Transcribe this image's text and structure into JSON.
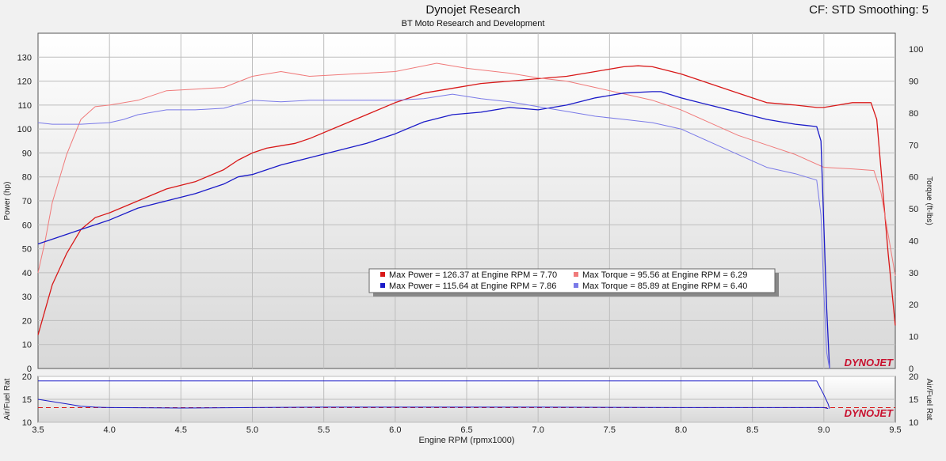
{
  "header": {
    "title": "Dynojet Research",
    "subtitle": "BT Moto Research and Development",
    "cf_info": "CF: STD Smoothing: 5"
  },
  "colors": {
    "run1_power": "#d81818",
    "run1_torque": "#f07a7a",
    "run2_power": "#1a1ac8",
    "run2_torque": "#7a7ae8",
    "afr_ref_line": "#d81818",
    "logo": "#c8102e"
  },
  "logo_text": "DYNOJET",
  "legend": {
    "placement": "center",
    "entries": [
      {
        "label": "Max Power = 126.37 at Engine RPM = 7.70",
        "color": "#d81818"
      },
      {
        "label": "Max Torque = 95.56 at Engine RPM = 6.29",
        "color": "#f07a7a"
      },
      {
        "label": "Max Power = 115.64 at Engine RPM = 7.86",
        "color": "#1a1ac8"
      },
      {
        "label": "Max Torque = 85.89 at Engine RPM = 6.40",
        "color": "#7a7ae8"
      }
    ]
  },
  "chart_data": [
    {
      "type": "line",
      "xlabel": "Engine RPM (rpmx1000)",
      "ylabel": "Power (hp)",
      "y2label": "Torque (ft-lbs)",
      "xlim": [
        3.5,
        9.5
      ],
      "ylim": [
        0,
        140
      ],
      "y2lim": [
        0,
        105
      ],
      "x_ticks": [
        "3.5",
        "4.0",
        "4.5",
        "5.0",
        "5.5",
        "6.0",
        "6.5",
        "7.0",
        "7.5",
        "8.0",
        "8.5",
        "9.0",
        "9.5"
      ],
      "y_ticks": [
        "0",
        "10",
        "20",
        "30",
        "40",
        "50",
        "60",
        "70",
        "80",
        "90",
        "100",
        "110",
        "120",
        "130"
      ],
      "y2_ticks": [
        "0",
        "10",
        "20",
        "30",
        "40",
        "50",
        "60",
        "70",
        "80",
        "90",
        "100"
      ],
      "grid": true,
      "series": [
        {
          "axis": "left",
          "color": "#d81818",
          "x": [
            3.5,
            3.6,
            3.7,
            3.8,
            3.9,
            4.0,
            4.2,
            4.4,
            4.6,
            4.8,
            4.9,
            5.0,
            5.1,
            5.2,
            5.3,
            5.4,
            5.6,
            5.8,
            6.0,
            6.2,
            6.4,
            6.6,
            6.8,
            7.0,
            7.2,
            7.4,
            7.6,
            7.7,
            7.8,
            8.0,
            8.2,
            8.4,
            8.6,
            8.8,
            8.95,
            9.0,
            9.1,
            9.2,
            9.3,
            9.33,
            9.37,
            9.45,
            9.5
          ],
          "y": [
            14,
            35,
            48,
            58,
            63,
            65,
            70,
            75,
            78,
            83,
            87,
            90,
            92,
            93,
            94,
            96,
            101,
            106,
            111,
            115,
            117,
            119,
            120,
            121,
            122,
            124,
            126,
            126.4,
            126,
            123,
            119,
            115,
            111,
            110,
            109,
            109,
            110,
            111,
            111,
            111,
            104,
            48,
            18
          ]
        },
        {
          "axis": "right",
          "color": "#f07a7a",
          "x": [
            3.5,
            3.55,
            3.6,
            3.7,
            3.8,
            3.9,
            4.0,
            4.2,
            4.4,
            4.6,
            4.8,
            5.0,
            5.2,
            5.4,
            5.6,
            5.8,
            6.0,
            6.29,
            6.5,
            6.8,
            7.0,
            7.2,
            7.4,
            7.6,
            7.8,
            8.0,
            8.2,
            8.4,
            8.6,
            8.8,
            9.0,
            9.2,
            9.35,
            9.4,
            9.5
          ],
          "y": [
            30,
            40,
            52,
            67,
            78,
            82,
            82.5,
            84,
            87,
            87.5,
            88,
            91.5,
            93,
            91.5,
            92,
            92.5,
            93,
            95.6,
            94,
            92.5,
            91,
            90,
            88,
            86,
            84,
            81,
            77,
            73,
            70,
            67,
            63,
            62.5,
            62,
            55,
            29
          ]
        },
        {
          "axis": "left",
          "color": "#1a1ac8",
          "x": [
            3.5,
            3.6,
            3.7,
            3.8,
            3.9,
            4.0,
            4.2,
            4.4,
            4.6,
            4.8,
            4.9,
            5.0,
            5.2,
            5.4,
            5.6,
            5.8,
            6.0,
            6.2,
            6.4,
            6.6,
            6.8,
            7.0,
            7.2,
            7.4,
            7.6,
            7.8,
            7.86,
            8.0,
            8.2,
            8.4,
            8.6,
            8.8,
            8.95,
            8.98,
            9.0,
            9.02,
            9.04
          ],
          "y": [
            52,
            54,
            56,
            58,
            60,
            62,
            67,
            70,
            73,
            77,
            80,
            81,
            85,
            88,
            91,
            94,
            98,
            103,
            106,
            107,
            109,
            108,
            110,
            113,
            115,
            115.6,
            115.6,
            113,
            110,
            107,
            104,
            102,
            101,
            95,
            60,
            25,
            0
          ]
        },
        {
          "axis": "right",
          "color": "#7a7ae8",
          "x": [
            3.5,
            3.6,
            3.8,
            4.0,
            4.1,
            4.2,
            4.4,
            4.6,
            4.8,
            5.0,
            5.2,
            5.4,
            5.6,
            5.8,
            6.0,
            6.2,
            6.4,
            6.6,
            6.8,
            7.0,
            7.2,
            7.4,
            7.6,
            7.8,
            8.0,
            8.2,
            8.4,
            8.6,
            8.8,
            8.95,
            8.98,
            9.0,
            9.02,
            9.04
          ],
          "y": [
            77,
            76.5,
            76.5,
            77,
            78,
            79.5,
            81,
            81,
            81.5,
            84,
            83.5,
            84,
            84,
            84,
            84,
            84.5,
            85.9,
            84.5,
            83.5,
            82,
            80.5,
            79,
            78,
            77,
            75,
            71,
            67,
            63,
            61,
            59,
            48,
            24,
            5,
            0
          ]
        }
      ]
    },
    {
      "type": "line",
      "xlabel": "Engine RPM (rpmx1000)",
      "ylabel": "Air/Fuel Rat",
      "y2label": "Air/Fuel Rat",
      "xlim": [
        3.5,
        9.5
      ],
      "ylim": [
        10,
        20
      ],
      "y_ticks": [
        "10",
        "15",
        "20"
      ],
      "y2_ticks": [
        "10",
        "15",
        "20"
      ],
      "reference_line": 13.2,
      "series": [
        {
          "color": "#1a1ac8",
          "x": [
            3.5,
            3.7,
            3.9,
            4.5,
            5.5,
            6.5,
            7.5,
            8.5,
            8.95,
            9.0,
            9.03,
            9.04
          ],
          "y": [
            19,
            19,
            19,
            19,
            19,
            19,
            19,
            19,
            19,
            16,
            14,
            13
          ]
        },
        {
          "color": "#1a1ac8",
          "x": [
            3.5,
            3.6,
            3.7,
            3.8,
            3.9,
            4.0,
            4.5,
            5.0,
            5.5,
            6.0,
            7.0,
            8.0,
            8.9,
            9.0,
            9.03
          ],
          "y": [
            15,
            14.5,
            14,
            13.5,
            13.3,
            13.2,
            13.1,
            13.2,
            13.3,
            13.3,
            13.3,
            13.2,
            13.2,
            13.2,
            13
          ]
        }
      ]
    }
  ]
}
